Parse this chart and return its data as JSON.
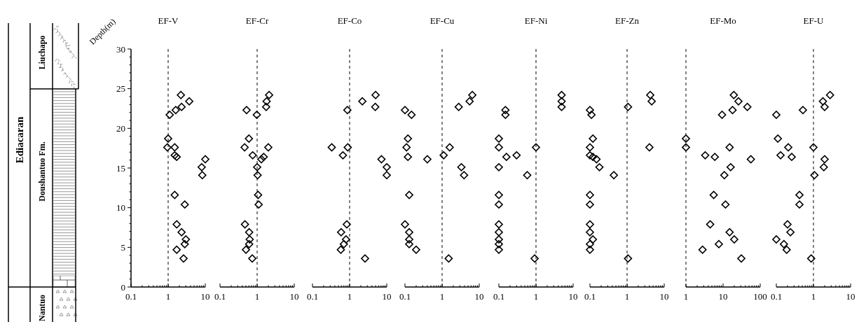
{
  "chart_data": [
    {
      "type": "scatter",
      "title": "EF-V",
      "ylabel": "Depth(m)",
      "annotations": [
        "Ediacaran",
        "Doushantuo Fm.",
        "Liuchapo",
        "Nantuo"
      ],
      "log": "x",
      "marker": "diamond",
      "xlim": [
        0.1,
        10
      ],
      "xticks": [
        0.1,
        {
          "value": 0.2,
          "label": null
        },
        {
          "value": 0.3,
          "label": null
        },
        {
          "value": 0.4,
          "label": null
        },
        {
          "value": 0.5,
          "label": null
        },
        {
          "value": 0.6,
          "label": null
        },
        {
          "value": 0.7,
          "label": null
        },
        {
          "value": 0.8,
          "label": null
        },
        {
          "value": 0.9,
          "label": null
        },
        1,
        {
          "value": 2,
          "label": null
        },
        {
          "value": 3,
          "label": null
        },
        {
          "value": 4,
          "label": null
        },
        {
          "value": 5,
          "label": null
        },
        {
          "value": 6,
          "label": null
        },
        {
          "value": 7,
          "label": null
        },
        {
          "value": 8,
          "label": null
        },
        {
          "value": 9,
          "label": null
        },
        10
      ],
      "ylim": [
        0,
        30
      ],
      "yticks": [
        0,
        {
          "value": 1,
          "label": null
        },
        {
          "value": 2,
          "label": null
        },
        {
          "value": 3,
          "label": null
        },
        {
          "value": 4,
          "label": null
        },
        5,
        {
          "value": 6,
          "label": null
        },
        {
          "value": 7,
          "label": null
        },
        {
          "value": 8,
          "label": null
        },
        {
          "value": 9,
          "label": null
        },
        10,
        {
          "value": 11,
          "label": null
        },
        {
          "value": 12,
          "label": null
        },
        {
          "value": 13,
          "label": null
        },
        {
          "value": 14,
          "label": null
        },
        15,
        {
          "value": 16,
          "label": null
        },
        {
          "value": 17,
          "label": null
        },
        {
          "value": 18,
          "label": null
        },
        {
          "value": 19,
          "label": null
        },
        20,
        {
          "value": 21,
          "label": null
        },
        {
          "value": 22,
          "label": null
        },
        {
          "value": 23,
          "label": null
        },
        {
          "value": 24,
          "label": null
        },
        25,
        {
          "value": 26,
          "label": null
        },
        {
          "value": 27,
          "label": null
        },
        {
          "value": 28,
          "label": null
        },
        {
          "value": 29,
          "label": null
        },
        30
      ],
      "ref_lines": [
        {
          "axis": "x",
          "value": 1,
          "color": "#808080",
          "line_style": "dashed"
        }
      ],
      "series": [
        {
          "color": "#000000",
          "x": [
            2.2,
            3.7,
            2.3,
            1.6,
            1.1,
            1.0,
            0.95,
            1.5,
            1.5,
            1.7,
            10,
            8,
            8.3,
            1.5,
            2.8,
            1.7,
            2.3,
            3.0,
            2.8,
            1.7,
            2.6
          ],
          "values": [
            24.2,
            23.4,
            22.7,
            22.3,
            21.7,
            18.7,
            17.6,
            17.6,
            16.6,
            16.4,
            16.1,
            15.1,
            14.1,
            11.6,
            10.4,
            7.9,
            6.9,
            6.0,
            5.4,
            4.7,
            3.6
          ]
        }
      ]
    },
    {
      "type": "scatter",
      "title": "EF-Cr",
      "tick_labels": "x",
      "log": "x",
      "marker": "diamond",
      "xlim": [
        0.1,
        10
      ],
      "xticks": [
        0.1,
        {
          "value": 0.2,
          "label": null
        },
        {
          "value": 0.3,
          "label": null
        },
        {
          "value": 0.4,
          "label": null
        },
        {
          "value": 0.5,
          "label": null
        },
        {
          "value": 0.6,
          "label": null
        },
        {
          "value": 0.7,
          "label": null
        },
        {
          "value": 0.8,
          "label": null
        },
        {
          "value": 0.9,
          "label": null
        },
        1,
        {
          "value": 2,
          "label": null
        },
        {
          "value": 3,
          "label": null
        },
        {
          "value": 4,
          "label": null
        },
        {
          "value": 5,
          "label": null
        },
        {
          "value": 6,
          "label": null
        },
        {
          "value": 7,
          "label": null
        },
        {
          "value": 8,
          "label": null
        },
        {
          "value": 9,
          "label": null
        },
        10
      ],
      "ylim": [
        0,
        30
      ],
      "ref_lines": [
        {
          "axis": "x",
          "value": 1,
          "color": "#808080",
          "line_style": "dashed"
        }
      ],
      "series": [
        {
          "color": "#000000",
          "x": [
            2.1,
            1.8,
            1.75,
            0.52,
            0.98,
            0.6,
            0.46,
            2.0,
            0.76,
            1.5,
            1.3,
            1.0,
            1.03,
            1.06,
            1.1,
            0.47,
            0.61,
            0.63,
            0.61,
            0.5,
            0.74
          ],
          "values": [
            24.2,
            23.4,
            22.7,
            22.3,
            21.7,
            18.7,
            17.6,
            17.6,
            16.6,
            16.4,
            16.1,
            15.1,
            14.1,
            11.6,
            10.4,
            7.9,
            6.9,
            6.0,
            5.4,
            4.7,
            3.6
          ]
        }
      ]
    },
    {
      "type": "scatter",
      "title": "EF-Co",
      "tick_labels": "x",
      "log": "x",
      "marker": "diamond",
      "xlim": [
        0.1,
        10
      ],
      "xticks": [
        0.1,
        {
          "value": 0.2,
          "label": null
        },
        {
          "value": 0.3,
          "label": null
        },
        {
          "value": 0.4,
          "label": null
        },
        {
          "value": 0.5,
          "label": null
        },
        {
          "value": 0.6,
          "label": null
        },
        {
          "value": 0.7,
          "label": null
        },
        {
          "value": 0.8,
          "label": null
        },
        {
          "value": 0.9,
          "label": null
        },
        1,
        {
          "value": 2,
          "label": null
        },
        {
          "value": 3,
          "label": null
        },
        {
          "value": 4,
          "label": null
        },
        {
          "value": 5,
          "label": null
        },
        {
          "value": 6,
          "label": null
        },
        {
          "value": 7,
          "label": null
        },
        {
          "value": 8,
          "label": null
        },
        {
          "value": 9,
          "label": null
        },
        10
      ],
      "ylim": [
        0,
        30
      ],
      "ref_lines": [
        {
          "axis": "x",
          "value": 1,
          "color": "#808080",
          "line_style": "dashed"
        }
      ],
      "series": [
        {
          "color": "#000000",
          "x": [
            5.0,
            2.2,
            4.9,
            0.87,
            0.33,
            0.89,
            0.66,
            7.2,
            10,
            10,
            0.84,
            0.59,
            0.8,
            0.7,
            0.58,
            2.6
          ],
          "values": [
            24.2,
            23.4,
            22.7,
            22.3,
            17.6,
            17.6,
            16.6,
            16.1,
            15.1,
            14.1,
            7.9,
            6.9,
            6.0,
            5.4,
            4.7,
            3.6
          ]
        }
      ]
    },
    {
      "type": "scatter",
      "title": "EF-Cu",
      "tick_labels": "x",
      "log": "x",
      "marker": "diamond",
      "xlim": [
        0.1,
        10
      ],
      "xticks": [
        0.1,
        {
          "value": 0.2,
          "label": null
        },
        {
          "value": 0.3,
          "label": null
        },
        {
          "value": 0.4,
          "label": null
        },
        {
          "value": 0.5,
          "label": null
        },
        {
          "value": 0.6,
          "label": null
        },
        {
          "value": 0.7,
          "label": null
        },
        {
          "value": 0.8,
          "label": null
        },
        {
          "value": 0.9,
          "label": null
        },
        1,
        {
          "value": 2,
          "label": null
        },
        {
          "value": 3,
          "label": null
        },
        {
          "value": 4,
          "label": null
        },
        {
          "value": 5,
          "label": null
        },
        {
          "value": 6,
          "label": null
        },
        {
          "value": 7,
          "label": null
        },
        {
          "value": 8,
          "label": null
        },
        {
          "value": 9,
          "label": null
        },
        10
      ],
      "ylim": [
        0,
        30
      ],
      "ref_lines": [
        {
          "axis": "x",
          "value": 1,
          "color": "#808080",
          "line_style": "dashed"
        }
      ],
      "series": [
        {
          "color": "#000000",
          "x": [
            6.5,
            5.5,
            2.8,
            0.1,
            0.15,
            0.12,
            0.11,
            1.6,
            1.1,
            0.12,
            0.4,
            3.3,
            3.9,
            0.13,
            0.1,
            0.13,
            0.13,
            0.13,
            0.2,
            1.5
          ],
          "values": [
            24.2,
            23.4,
            22.7,
            22.3,
            21.7,
            18.7,
            17.6,
            17.6,
            16.6,
            16.4,
            16.1,
            15.1,
            14.1,
            11.6,
            7.9,
            6.9,
            6.0,
            5.4,
            4.7,
            3.6
          ]
        }
      ]
    },
    {
      "type": "scatter",
      "title": "EF-Ni",
      "tick_labels": "x",
      "log": "x",
      "marker": "diamond",
      "xlim": [
        0.1,
        10
      ],
      "xticks": [
        0.1,
        {
          "value": 0.2,
          "label": null
        },
        {
          "value": 0.3,
          "label": null
        },
        {
          "value": 0.4,
          "label": null
        },
        {
          "value": 0.5,
          "label": null
        },
        {
          "value": 0.6,
          "label": null
        },
        {
          "value": 0.7,
          "label": null
        },
        {
          "value": 0.8,
          "label": null
        },
        {
          "value": 0.9,
          "label": null
        },
        1,
        {
          "value": 2,
          "label": null
        },
        {
          "value": 3,
          "label": null
        },
        {
          "value": 4,
          "label": null
        },
        {
          "value": 5,
          "label": null
        },
        {
          "value": 6,
          "label": null
        },
        {
          "value": 7,
          "label": null
        },
        {
          "value": 8,
          "label": null
        },
        {
          "value": 9,
          "label": null
        },
        10
      ],
      "ylim": [
        0,
        30
      ],
      "ref_lines": [
        {
          "axis": "x",
          "value": 1,
          "color": "#808080",
          "line_style": "dashed"
        }
      ],
      "series": [
        {
          "color": "#000000",
          "x": [
            4.9,
            4.9,
            4.9,
            0.15,
            0.15,
            0.1,
            0.1,
            1.0,
            0.3,
            0.16,
            0.1,
            0.58,
            0.1,
            0.1,
            0.1,
            0.1,
            0.1,
            0.1,
            0.1,
            0.92
          ],
          "values": [
            24.2,
            23.4,
            22.7,
            22.3,
            21.7,
            18.7,
            17.6,
            17.6,
            16.6,
            16.4,
            15.1,
            14.1,
            11.6,
            10.4,
            7.9,
            6.9,
            6.0,
            5.4,
            4.7,
            3.6
          ]
        }
      ]
    },
    {
      "type": "scatter",
      "title": "EF-Zn",
      "tick_labels": "x",
      "log": "x",
      "marker": "diamond",
      "xlim": [
        0.1,
        10
      ],
      "xticks": [
        0.1,
        {
          "value": 0.2,
          "label": null
        },
        {
          "value": 0.3,
          "label": null
        },
        {
          "value": 0.4,
          "label": null
        },
        {
          "value": 0.5,
          "label": null
        },
        {
          "value": 0.6,
          "label": null
        },
        {
          "value": 0.7,
          "label": null
        },
        {
          "value": 0.8,
          "label": null
        },
        {
          "value": 0.9,
          "label": null
        },
        1,
        {
          "value": 2,
          "label": null
        },
        {
          "value": 3,
          "label": null
        },
        {
          "value": 4,
          "label": null
        },
        {
          "value": 5,
          "label": null
        },
        {
          "value": 6,
          "label": null
        },
        {
          "value": 7,
          "label": null
        },
        {
          "value": 8,
          "label": null
        },
        {
          "value": 9,
          "label": null
        },
        10
      ],
      "ylim": [
        0,
        30
      ],
      "ref_lines": [
        {
          "axis": "x",
          "value": 1,
          "color": "#808080",
          "line_style": "dashed"
        }
      ],
      "series": [
        {
          "color": "#000000",
          "x": [
            4.2,
            4.6,
            1.06,
            0.1,
            0.11,
            0.12,
            0.1,
            4.0,
            0.1,
            0.12,
            0.15,
            0.18,
            0.44,
            0.1,
            0.1,
            0.1,
            0.1,
            0.12,
            0.1,
            0.1,
            1.06
          ],
          "values": [
            24.2,
            23.4,
            22.7,
            22.3,
            21.7,
            18.7,
            17.6,
            17.6,
            16.6,
            16.4,
            16.1,
            15.1,
            14.1,
            11.6,
            10.4,
            7.9,
            6.9,
            6.0,
            5.4,
            4.7,
            3.6
          ]
        }
      ]
    },
    {
      "type": "scatter",
      "title": "EF-Mo",
      "tick_labels": "x",
      "log": "x",
      "marker": "diamond",
      "xlim": [
        1,
        100
      ],
      "xticks": [
        1,
        {
          "value": 2,
          "label": null
        },
        {
          "value": 3,
          "label": null
        },
        {
          "value": 4,
          "label": null
        },
        {
          "value": 5,
          "label": null
        },
        {
          "value": 6,
          "label": null
        },
        {
          "value": 7,
          "label": null
        },
        {
          "value": 8,
          "label": null
        },
        {
          "value": 9,
          "label": null
        },
        10,
        {
          "value": 20,
          "label": null
        },
        {
          "value": 30,
          "label": null
        },
        {
          "value": 40,
          "label": null
        },
        {
          "value": 50,
          "label": null
        },
        {
          "value": 60,
          "label": null
        },
        {
          "value": 70,
          "label": null
        },
        {
          "value": 80,
          "label": null
        },
        {
          "value": 90,
          "label": null
        },
        100
      ],
      "ylim": [
        0,
        30
      ],
      "ref_lines": [
        {
          "axis": "x",
          "value": 1,
          "color": "#808080",
          "line_style": "dashed"
        }
      ],
      "series": [
        {
          "color": "#000000",
          "x": [
            19.5,
            26,
            45,
            18,
            9.4,
            1,
            1,
            15,
            3.3,
            6.0,
            56,
            16,
            10.8,
            5.6,
            11.6,
            4.5,
            15,
            20,
            7.7,
            2.8,
            31
          ],
          "values": [
            24.2,
            23.4,
            22.7,
            22.3,
            21.7,
            18.7,
            17.6,
            17.6,
            16.6,
            16.4,
            16.1,
            15.1,
            14.1,
            11.6,
            10.4,
            7.9,
            6.9,
            6.0,
            5.4,
            4.7,
            3.6
          ]
        }
      ]
    },
    {
      "type": "scatter",
      "title": "EF-U",
      "tick_labels": "x",
      "log": "x",
      "marker": "diamond",
      "xlim": [
        0.1,
        10
      ],
      "xticks": [
        0.1,
        {
          "value": 0.2,
          "label": null
        },
        {
          "value": 0.3,
          "label": null
        },
        {
          "value": 0.4,
          "label": null
        },
        {
          "value": 0.5,
          "label": null
        },
        {
          "value": 0.6,
          "label": null
        },
        {
          "value": 0.7,
          "label": null
        },
        {
          "value": 0.8,
          "label": null
        },
        {
          "value": 0.9,
          "label": null
        },
        1,
        {
          "value": 2,
          "label": null
        },
        {
          "value": 3,
          "label": null
        },
        {
          "value": 4,
          "label": null
        },
        {
          "value": 5,
          "label": null
        },
        {
          "value": 6,
          "label": null
        },
        {
          "value": 7,
          "label": null
        },
        {
          "value": 8,
          "label": null
        },
        {
          "value": 9,
          "label": null
        },
        10
      ],
      "ylim": [
        0,
        30
      ],
      "ref_lines": [
        {
          "axis": "x",
          "value": 1,
          "color": "#808080",
          "line_style": "dashed"
        }
      ],
      "series": [
        {
          "color": "#000000",
          "x": [
            2.8,
            1.8,
            2.0,
            0.52,
            0.1,
            0.11,
            0.21,
            1.0,
            0.13,
            0.26,
            2.0,
            1.9,
            1.06,
            0.42,
            0.42,
            0.2,
            0.24,
            0.1,
            0.16,
            0.19,
            0.87
          ],
          "values": [
            24.2,
            23.4,
            22.7,
            22.3,
            21.7,
            18.7,
            17.6,
            17.6,
            16.6,
            16.4,
            16.1,
            15.1,
            14.1,
            11.6,
            10.4,
            7.9,
            6.9,
            6.0,
            5.4,
            4.7,
            3.6
          ]
        }
      ]
    }
  ]
}
